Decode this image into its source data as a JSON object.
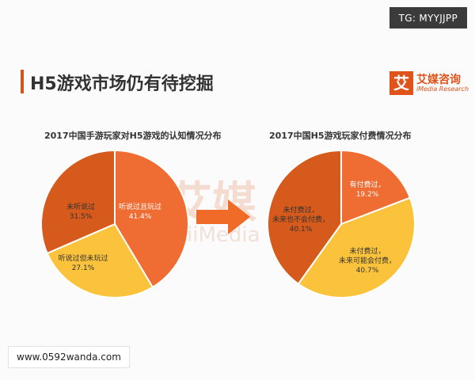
{
  "header": {
    "badge": "TG: MYYJJPP",
    "title": "H5游戏市场仍有待挖掘",
    "brand": {
      "logo_char": "艾",
      "name": "艾媒咨询",
      "subtitle": "iMedia Research"
    }
  },
  "watermark": {
    "big": "艾媒",
    "small": "iiMedia"
  },
  "footer": {
    "url": "www.0592wanda.com"
  },
  "colors": {
    "dark_orange": "#d55a1b",
    "orange": "#ef6d33",
    "yellow": "#fbc23b",
    "accent": "#e0531a",
    "arrow": "#f06a28"
  },
  "chart_data": [
    {
      "type": "pie",
      "title": "2017中国手游玩家对H5游戏的认知情况分布",
      "slices": [
        {
          "label": "听说过且玩过",
          "value": 41.4,
          "value_label": "41.4%",
          "color": "#ef6d33",
          "text_color": "#ffffff"
        },
        {
          "label": "听说过但未玩过",
          "value": 27.1,
          "value_label": "27.1%",
          "color": "#fbc23b",
          "text_color": "#333333"
        },
        {
          "label": "未听说过",
          "value": 31.5,
          "value_label": "31.5%",
          "color": "#d55a1b",
          "text_color": "#333333"
        }
      ]
    },
    {
      "type": "pie",
      "title": "2017中国H5游戏玩家付费情况分布",
      "slices": [
        {
          "label": "有付费过，",
          "value": 19.2,
          "value_label": "19.2%",
          "color": "#ef6d33",
          "text_color": "#ffffff"
        },
        {
          "label": "未付费过，未来可能会付费，",
          "value": 40.7,
          "value_label": "40.7%",
          "color": "#fbc23b",
          "text_color": "#333333"
        },
        {
          "label": "未付费过，未来也不会付费，",
          "value": 40.1,
          "value_label": "40.1%",
          "color": "#d55a1b",
          "text_color": "#333333"
        }
      ]
    }
  ]
}
